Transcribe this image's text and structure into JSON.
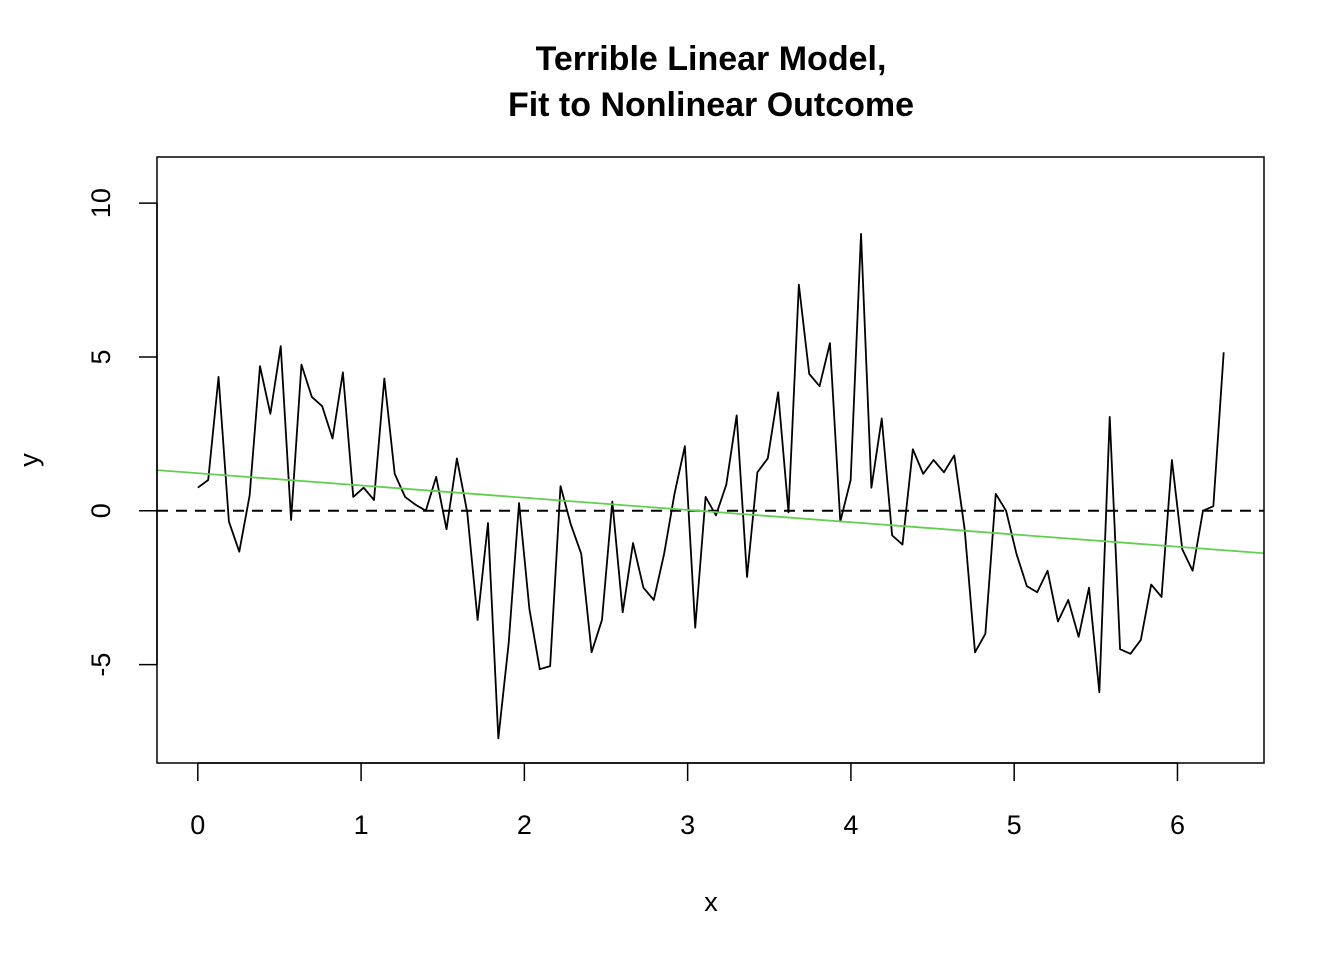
{
  "chart_data": {
    "type": "line",
    "title_lines": [
      "Terrible Linear Model,",
      "Fit to Nonlinear Outcome"
    ],
    "xlabel": "x",
    "ylabel": "y",
    "xlim": [
      -0.25,
      6.53
    ],
    "ylim": [
      -8.2,
      11.5
    ],
    "xticks": [
      0,
      1,
      2,
      3,
      4,
      5,
      6
    ],
    "yticks": [
      -5,
      0,
      5,
      10
    ],
    "xtick_labels": [
      "0",
      "1",
      "2",
      "3",
      "4",
      "5",
      "6"
    ],
    "ytick_labels": [
      "-5",
      "0",
      "5",
      "10"
    ],
    "grid": false,
    "legend": "none",
    "series": [
      {
        "style": "line",
        "color": "#000000",
        "x": [
          0.0,
          0.0635,
          0.127,
          0.1904,
          0.2539,
          0.3174,
          0.3808,
          0.4443,
          0.5078,
          0.5712,
          0.6347,
          0.6982,
          0.7616,
          0.8251,
          0.8886,
          0.952,
          1.0155,
          1.079,
          1.1424,
          1.2059,
          1.2694,
          1.3328,
          1.3963,
          1.4598,
          1.5232,
          1.5867,
          1.6502,
          1.7136,
          1.7771,
          1.8406,
          1.904,
          1.9675,
          2.031,
          2.0944,
          2.1579,
          2.2214,
          2.2848,
          2.3483,
          2.4118,
          2.4752,
          2.5387,
          2.6022,
          2.6656,
          2.7291,
          2.7926,
          2.856,
          2.9195,
          2.983,
          3.0464,
          3.1099,
          3.1734,
          3.2368,
          3.3003,
          3.3638,
          3.4272,
          3.4907,
          3.5542,
          3.6176,
          3.6811,
          3.7446,
          3.808,
          3.8715,
          3.935,
          3.9984,
          4.0619,
          4.1254,
          4.1888,
          4.2523,
          4.3158,
          4.3792,
          4.4427,
          4.5062,
          4.5696,
          4.6331,
          4.6966,
          4.76,
          4.8235,
          4.887,
          4.9504,
          5.0139,
          5.0774,
          5.1408,
          5.2043,
          5.2678,
          5.3312,
          5.3947,
          5.4582,
          5.5216,
          5.5851,
          5.6486,
          5.712,
          5.7755,
          5.839,
          5.9024,
          5.9659,
          6.0294,
          6.0928,
          6.1563,
          6.2198,
          6.2832
        ],
        "y": [
          0.75,
          1.0,
          4.35,
          -0.35,
          -1.33,
          0.5,
          4.7,
          3.15,
          5.35,
          -0.3,
          4.75,
          3.7,
          3.4,
          2.35,
          4.5,
          0.45,
          0.75,
          0.35,
          4.3,
          1.2,
          0.45,
          0.2,
          0.0,
          1.1,
          -0.6,
          1.7,
          -0.05,
          -3.55,
          -0.4,
          -7.4,
          -4.3,
          0.25,
          -3.2,
          -5.15,
          -5.05,
          0.8,
          -0.45,
          -1.4,
          -4.6,
          -3.55,
          0.3,
          -3.3,
          -1.05,
          -2.5,
          -2.9,
          -1.4,
          0.55,
          2.1,
          -3.8,
          0.45,
          -0.15,
          0.85,
          3.1,
          -2.15,
          1.25,
          1.7,
          3.85,
          -0.05,
          7.35,
          4.45,
          4.05,
          5.45,
          -0.35,
          1.0,
          9.0,
          0.75,
          3.0,
          -0.8,
          -1.1,
          2.0,
          1.2,
          1.65,
          1.25,
          1.8,
          -0.6,
          -4.6,
          -4.0,
          0.55,
          0.0,
          -1.4,
          -2.45,
          -2.65,
          -1.95,
          -3.6,
          -2.9,
          -4.1,
          -2.5,
          -5.9,
          3.05,
          -4.5,
          -4.65,
          -4.2,
          -2.4,
          -2.8,
          1.65,
          -1.25,
          -1.95,
          0.0,
          0.15,
          5.15
        ]
      },
      {
        "style": "dashed",
        "color": "#000000",
        "x": [
          -0.25,
          6.53
        ],
        "y": [
          0,
          0
        ]
      },
      {
        "style": "line",
        "color": "#61D04F",
        "x": [
          -0.25,
          6.53
        ],
        "y": [
          1.32,
          -1.38
        ]
      }
    ]
  }
}
